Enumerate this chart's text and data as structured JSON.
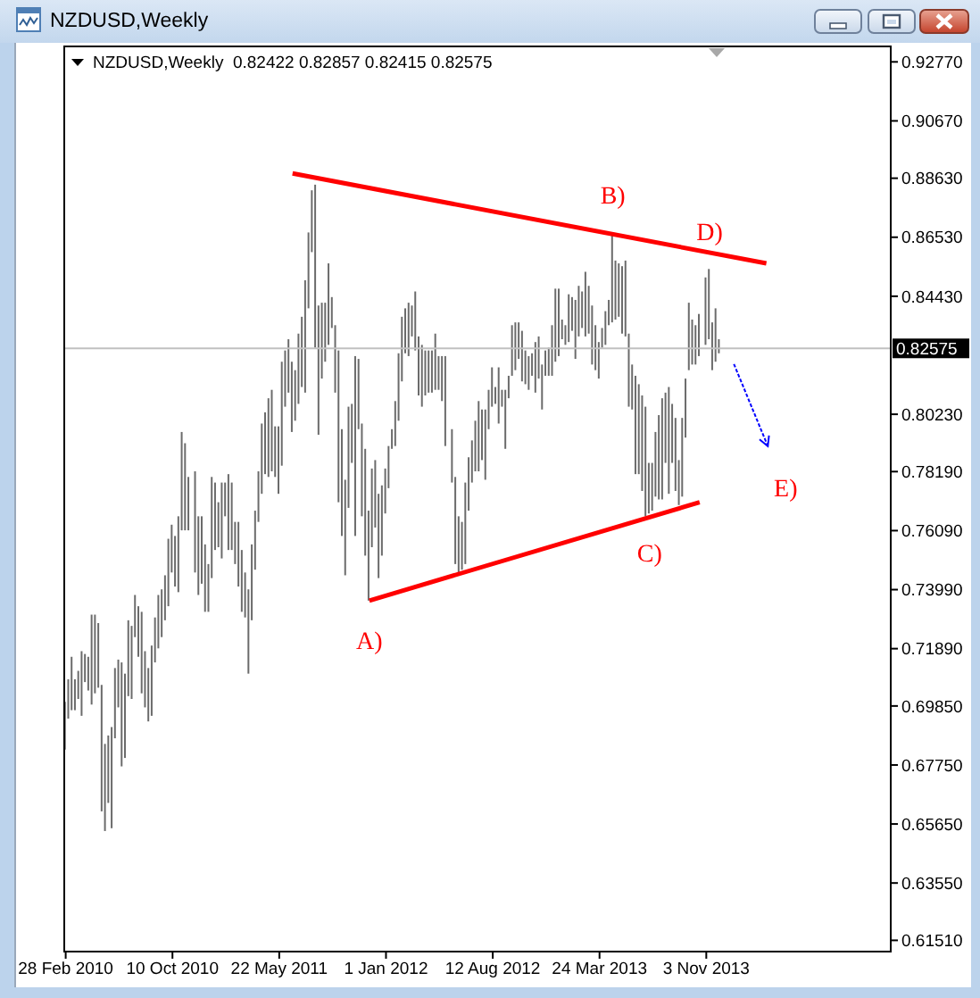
{
  "chart_data": {
    "type": "bar",
    "title": "NZDUSD,Weekly",
    "subtitle": "NZDUSD,Weekly  0.82422 0.82857 0.82415 0.82575",
    "x": [
      "2010-02-28",
      "2010-03-07",
      "2010-03-14",
      "2010-03-21",
      "2010-03-28",
      "2010-04-04",
      "2010-04-11",
      "2010-04-18",
      "2010-04-25",
      "2010-05-02",
      "2010-05-09",
      "2010-05-16",
      "2010-05-23",
      "2010-05-30",
      "2010-06-06",
      "2010-06-13",
      "2010-06-20",
      "2010-06-27",
      "2010-07-04",
      "2010-07-11",
      "2010-07-18",
      "2010-07-25",
      "2010-08-01",
      "2010-08-08",
      "2010-08-15",
      "2010-08-22",
      "2010-08-29",
      "2010-09-05",
      "2010-09-12",
      "2010-09-19",
      "2010-09-26",
      "2010-10-03",
      "2010-10-10",
      "2010-10-17",
      "2010-10-24",
      "2010-10-31",
      "2010-11-07",
      "2010-11-14",
      "2010-11-28",
      "2010-12-05",
      "2010-12-12",
      "2010-12-19",
      "2010-12-26",
      "2011-01-02",
      "2011-01-09",
      "2011-01-16",
      "2011-01-23",
      "2011-01-30",
      "2011-02-06",
      "2011-02-13",
      "2011-02-20",
      "2011-02-27",
      "2011-03-06",
      "2011-03-13",
      "2011-03-20",
      "2011-03-27",
      "2011-04-03",
      "2011-04-10",
      "2011-04-17",
      "2011-04-24",
      "2011-05-01",
      "2011-05-08",
      "2011-05-15",
      "2011-05-22",
      "2011-05-29",
      "2011-06-05",
      "2011-06-12",
      "2011-06-19",
      "2011-06-26",
      "2011-07-03",
      "2011-07-10",
      "2011-07-17",
      "2011-07-24",
      "2011-07-31",
      "2011-08-07",
      "2011-08-14",
      "2011-08-21",
      "2011-08-28",
      "2011-09-04",
      "2011-09-11",
      "2011-09-18",
      "2011-09-25",
      "2011-10-02",
      "2011-10-09",
      "2011-10-16",
      "2011-10-23",
      "2011-10-30",
      "2011-11-06",
      "2011-11-13",
      "2011-11-20",
      "2011-11-27",
      "2011-12-04",
      "2011-12-11",
      "2011-12-18",
      "2011-12-25",
      "2012-01-01",
      "2012-01-08",
      "2012-01-15",
      "2012-01-22",
      "2012-01-29",
      "2012-02-05",
      "2012-02-12",
      "2012-02-19",
      "2012-02-26",
      "2012-03-04",
      "2012-03-11",
      "2012-03-18",
      "2012-03-25",
      "2012-04-01",
      "2012-04-08",
      "2012-04-15",
      "2012-04-22",
      "2012-04-29",
      "2012-05-06",
      "2012-05-20",
      "2012-05-27",
      "2012-06-03",
      "2012-06-10",
      "2012-06-17",
      "2012-06-24",
      "2012-07-01",
      "2012-07-08",
      "2012-07-15",
      "2012-07-22",
      "2012-07-29",
      "2012-08-05",
      "2012-08-12",
      "2012-08-19",
      "2012-08-26",
      "2012-09-02",
      "2012-09-09",
      "2012-09-16",
      "2012-09-23",
      "2012-09-30",
      "2012-10-07",
      "2012-10-14",
      "2012-10-21",
      "2012-10-28",
      "2012-11-04",
      "2012-11-11",
      "2012-11-18",
      "2012-11-25",
      "2012-12-02",
      "2012-12-09",
      "2012-12-16",
      "2012-12-23",
      "2012-12-30",
      "2013-01-06",
      "2013-01-13",
      "2013-01-20",
      "2013-01-27",
      "2013-02-03",
      "2013-02-10",
      "2013-02-17",
      "2013-02-24",
      "2013-03-03",
      "2013-03-10",
      "2013-03-17",
      "2013-03-24",
      "2013-03-31",
      "2013-04-07",
      "2013-04-14",
      "2013-04-21",
      "2013-04-28",
      "2013-05-05",
      "2013-05-12",
      "2013-05-19",
      "2013-05-26",
      "2013-06-02",
      "2013-06-09",
      "2013-06-16",
      "2013-06-23",
      "2013-06-30",
      "2013-07-07",
      "2013-07-14",
      "2013-07-21",
      "2013-07-28",
      "2013-08-04",
      "2013-08-11",
      "2013-08-18",
      "2013-08-25",
      "2013-09-01",
      "2013-09-08",
      "2013-09-15",
      "2013-09-22",
      "2013-09-29",
      "2013-10-06",
      "2013-10-13",
      "2013-10-20",
      "2013-11-03",
      "2013-11-10",
      "2013-11-17",
      "2013-11-24",
      "2013-12-01"
    ],
    "series": [
      {
        "color": "#6b6b6b",
        "base": [
          0.683,
          0.694,
          0.697,
          0.697,
          0.701,
          0.695,
          0.707,
          0.704,
          0.699,
          0.703,
          0.705,
          0.661,
          0.654,
          0.664,
          0.655,
          0.687,
          0.698,
          0.677,
          0.68,
          0.702,
          0.701,
          0.723,
          0.716,
          0.703,
          0.698,
          0.693,
          0.695,
          0.714,
          0.719,
          0.723,
          0.729,
          0.734,
          0.746,
          0.741,
          0.739,
          0.761,
          0.761,
          0.761,
          0.746,
          0.738,
          0.742,
          0.732,
          0.732,
          0.744,
          0.754,
          0.755,
          0.751,
          0.766,
          0.754,
          0.754,
          0.749,
          0.741,
          0.732,
          0.73,
          0.71,
          0.729,
          0.747,
          0.764,
          0.774,
          0.781,
          0.78,
          0.782,
          0.78,
          0.774,
          0.784,
          0.805,
          0.81,
          0.796,
          0.8,
          0.806,
          0.812,
          0.81,
          0.84,
          0.86,
          0.826,
          0.795,
          0.815,
          0.821,
          0.827,
          0.833,
          0.81,
          0.771,
          0.759,
          0.745,
          0.769,
          0.785,
          0.759,
          0.797,
          0.766,
          0.752,
          0.736,
          0.755,
          0.762,
          0.744,
          0.752,
          0.767,
          0.776,
          0.79,
          0.791,
          0.8,
          0.814,
          0.824,
          0.823,
          0.83,
          0.825,
          0.809,
          0.805,
          0.809,
          0.81,
          0.81,
          0.811,
          0.811,
          0.807,
          0.791,
          0.778,
          0.749,
          0.746,
          0.747,
          0.749,
          0.768,
          0.778,
          0.782,
          0.782,
          0.786,
          0.779,
          0.797,
          0.805,
          0.806,
          0.799,
          0.805,
          0.79,
          0.808,
          0.816,
          0.818,
          0.822,
          0.814,
          0.813,
          0.811,
          0.816,
          0.81,
          0.815,
          0.804,
          0.816,
          0.816,
          0.816,
          0.821,
          0.823,
          0.829,
          0.827,
          0.828,
          0.832,
          0.822,
          0.83,
          0.833,
          0.83,
          0.831,
          0.82,
          0.818,
          0.815,
          0.826,
          0.827,
          0.834,
          0.835,
          0.836,
          0.837,
          0.831,
          0.83,
          0.805,
          0.804,
          0.781,
          0.781,
          0.775,
          0.766,
          0.767,
          0.768,
          0.773,
          0.772,
          0.772,
          0.785,
          0.774,
          0.785,
          0.775,
          0.77,
          0.773,
          0.794,
          0.818,
          0.82,
          0.82,
          0.823,
          0.827,
          0.829,
          0.818,
          0.821,
          0.824
        ],
        "values": [
          0.017,
          0.014,
          0.019,
          0.011,
          0.01,
          0.023,
          0.01,
          0.012,
          0.032,
          0.028,
          0.023,
          0.045,
          0.031,
          0.024,
          0.036,
          0.025,
          0.017,
          0.037,
          0.03,
          0.027,
          0.026,
          0.015,
          0.018,
          0.029,
          0.02,
          0.019,
          0.025,
          0.016,
          0.019,
          0.017,
          0.016,
          0.024,
          0.017,
          0.018,
          0.027,
          0.035,
          0.031,
          0.019,
          0.036,
          0.028,
          0.024,
          0.024,
          0.017,
          0.036,
          0.024,
          0.016,
          0.027,
          0.012,
          0.027,
          0.024,
          0.015,
          0.023,
          0.022,
          0.016,
          0.03,
          0.027,
          0.021,
          0.018,
          0.025,
          0.022,
          0.028,
          0.029,
          0.018,
          0.024,
          0.037,
          0.02,
          0.019,
          0.025,
          0.018,
          0.025,
          0.025,
          0.04,
          0.027,
          0.022,
          0.058,
          0.046,
          0.027,
          0.021,
          0.029,
          0.011,
          0.024,
          0.054,
          0.038,
          0.034,
          0.036,
          0.021,
          0.064,
          0.025,
          0.033,
          0.038,
          0.032,
          0.028,
          0.024,
          0.03,
          0.025,
          0.016,
          0.015,
          0.007,
          0.016,
          0.024,
          0.023,
          0.016,
          0.019,
          0.011,
          0.021,
          0.021,
          0.022,
          0.016,
          0.015,
          0.015,
          0.02,
          0.012,
          0.016,
          0.032,
          0.019,
          0.031,
          0.02,
          0.017,
          0.029,
          0.019,
          0.015,
          0.018,
          0.025,
          0.018,
          0.025,
          0.014,
          0.014,
          0.006,
          0.02,
          0.006,
          0.021,
          0.008,
          0.018,
          0.017,
          0.013,
          0.018,
          0.012,
          0.012,
          0.008,
          0.018,
          0.015,
          0.016,
          0.009,
          0.01,
          0.018,
          0.026,
          0.024,
          0.007,
          0.007,
          0.017,
          0.012,
          0.021,
          0.018,
          0.013,
          0.023,
          0.017,
          0.021,
          0.016,
          0.013,
          0.007,
          0.012,
          0.009,
          0.032,
          0.021,
          0.019,
          0.024,
          0.027,
          0.026,
          0.016,
          0.035,
          0.032,
          0.034,
          0.039,
          0.018,
          0.017,
          0.023,
          0.03,
          0.036,
          0.025,
          0.038,
          0.021,
          0.026,
          0.016,
          0.028,
          0.021,
          0.024,
          0.016,
          0.014,
          0.015,
          0.024,
          0.025,
          0.017,
          0.019,
          0.005
        ]
      },
      {
        "type": "line",
        "color": "#ff0000",
        "x": [
          "2011-06-19",
          "2014-03-09"
        ],
        "values": [
          0.888,
          0.856
        ]
      },
      {
        "type": "line",
        "color": "#ff0000",
        "x": [
          "2011-11-27",
          "2013-10-20"
        ],
        "values": [
          0.736,
          0.771
        ]
      }
    ],
    "xlim": [
      "2010-02-25",
      "2014-11-25"
    ],
    "xticks": [
      {
        "value": "2010-02-28",
        "label": "28 Feb 2010"
      },
      {
        "value": "2010-10-10",
        "label": "10 Oct 2010"
      },
      {
        "value": "2011-05-22",
        "label": "22 May 2011"
      },
      {
        "value": "2012-01-01",
        "label": "1 Jan 2012"
      },
      {
        "value": "2012-08-12",
        "label": "12 Aug 2012"
      },
      {
        "value": "2013-03-24",
        "label": "24 Mar 2013"
      },
      {
        "value": "2013-11-03",
        "label": "3 Nov 2013"
      }
    ],
    "ylim": [
      0.6111,
      0.9332
    ],
    "yticks": [
      {
        "value": 0.9277,
        "label": "0.92770"
      },
      {
        "value": 0.9067,
        "label": "0.90670"
      },
      {
        "value": 0.8863,
        "label": "0.88630"
      },
      {
        "value": 0.8653,
        "label": "0.86530"
      },
      {
        "value": 0.8443,
        "label": "0.84430"
      },
      {
        "value": 0.8023,
        "label": "0.80230"
      },
      {
        "value": 0.7819,
        "label": "0.78190"
      },
      {
        "value": 0.7609,
        "label": "0.76090"
      },
      {
        "value": 0.7399,
        "label": "0.73990"
      },
      {
        "value": 0.7189,
        "label": "0.71890"
      },
      {
        "value": 0.6985,
        "label": "0.69850"
      },
      {
        "value": 0.6775,
        "label": "0.67750"
      },
      {
        "value": 0.6565,
        "label": "0.65650"
      },
      {
        "value": 0.6355,
        "label": "0.63550"
      },
      {
        "value": 0.6151,
        "label": "0.61510"
      }
    ],
    "ref_lines": [
      {
        "axis": "y",
        "value": 0.82575,
        "label": "0.82575",
        "color": "#c0c0c0"
      }
    ],
    "annotations": [
      {
        "text": "A)",
        "x": "2011-11-27",
        "y": 0.736
      },
      {
        "text": "B)",
        "x": "2013-04-21",
        "y": 0.867
      },
      {
        "text": "C)",
        "x": "2013-07-07",
        "y": 0.767
      },
      {
        "text": "D)",
        "x": "2013-11-10",
        "y": 0.854
      },
      "E)"
    ]
  }
}
